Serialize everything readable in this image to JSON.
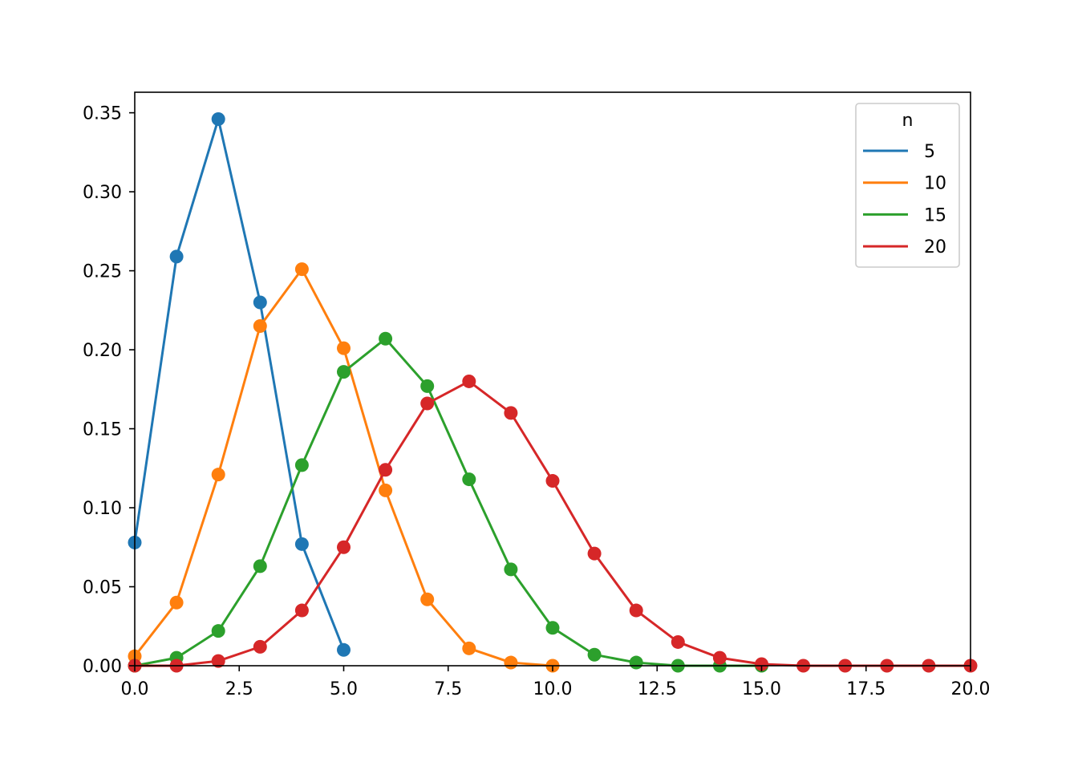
{
  "chart_data": {
    "type": "line",
    "title": "",
    "xlabel": "",
    "ylabel": "",
    "xlim": [
      0,
      20
    ],
    "ylim": [
      0,
      0.363
    ],
    "x_ticks": [
      0,
      2.5,
      5,
      7.5,
      10,
      12.5,
      15,
      17.5,
      20
    ],
    "x_tick_labels": [
      "0.0",
      "2.5",
      "5.0",
      "7.5",
      "10.0",
      "12.5",
      "15.0",
      "17.5",
      "20.0"
    ],
    "y_ticks": [
      0,
      0.05,
      0.1,
      0.15,
      0.2,
      0.25,
      0.3,
      0.35
    ],
    "y_tick_labels": [
      "0.00",
      "0.05",
      "0.10",
      "0.15",
      "0.20",
      "0.25",
      "0.30",
      "0.35"
    ],
    "grid": false,
    "markers": true,
    "legend": {
      "title": "n",
      "position": "top-right"
    },
    "series": [
      {
        "name": "5",
        "color": "#1f77b4",
        "x": [
          0,
          1,
          2,
          3,
          4,
          5
        ],
        "y": [
          0.078,
          0.259,
          0.346,
          0.23,
          0.077,
          0.01
        ]
      },
      {
        "name": "10",
        "color": "#ff7f0e",
        "x": [
          0,
          1,
          2,
          3,
          4,
          5,
          6,
          7,
          8,
          9,
          10
        ],
        "y": [
          0.006,
          0.04,
          0.121,
          0.215,
          0.251,
          0.201,
          0.111,
          0.042,
          0.011,
          0.002,
          0.0
        ]
      },
      {
        "name": "15",
        "color": "#2ca02c",
        "x": [
          0,
          1,
          2,
          3,
          4,
          5,
          6,
          7,
          8,
          9,
          10,
          11,
          12,
          13,
          14,
          15
        ],
        "y": [
          0.0,
          0.005,
          0.022,
          0.063,
          0.127,
          0.186,
          0.207,
          0.177,
          0.118,
          0.061,
          0.024,
          0.007,
          0.002,
          0.0,
          0.0,
          0.0
        ]
      },
      {
        "name": "20",
        "color": "#d62728",
        "x": [
          0,
          1,
          2,
          3,
          4,
          5,
          6,
          7,
          8,
          9,
          10,
          11,
          12,
          13,
          14,
          15,
          16,
          17,
          18,
          19,
          20
        ],
        "y": [
          0.0,
          0.0,
          0.003,
          0.012,
          0.035,
          0.075,
          0.124,
          0.166,
          0.18,
          0.16,
          0.117,
          0.071,
          0.035,
          0.015,
          0.005,
          0.001,
          0.0,
          0.0,
          0.0,
          0.0,
          0.0
        ]
      }
    ]
  }
}
